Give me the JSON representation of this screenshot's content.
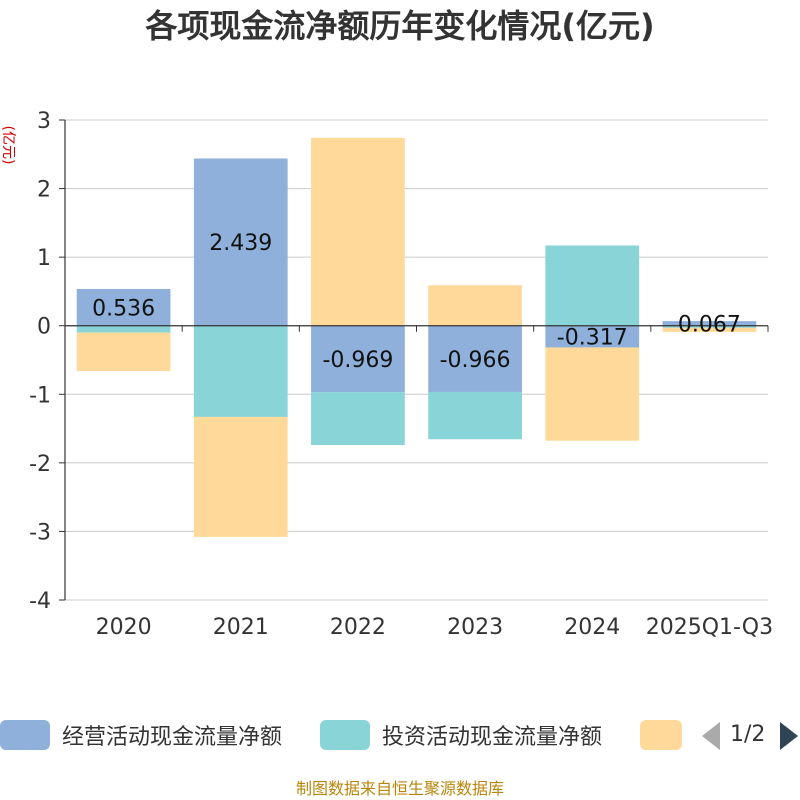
{
  "chart_data": {
    "type": "bar",
    "stacked": true,
    "title": "各项现金流净额历年变化情况(亿元)",
    "ylabel": "(亿元)",
    "xlabel": "",
    "ylim": [
      -4,
      3
    ],
    "yticks": [
      3,
      2,
      1,
      0,
      -1,
      -2,
      -3,
      -4
    ],
    "grid": true,
    "categories": [
      "2020",
      "2021",
      "2022",
      "2023",
      "2024",
      "2025Q1-Q3"
    ],
    "series": [
      {
        "name": "经营活动现金流量净额",
        "color": "#8eb0db",
        "values": [
          0.536,
          2.439,
          -0.969,
          -0.966,
          -0.317,
          0.067
        ],
        "labels_shown": true
      },
      {
        "name": "投资活动现金流量净额",
        "color": "#88d4d7",
        "values": [
          -0.1,
          -1.33,
          -0.77,
          -0.69,
          1.17,
          -0.03
        ],
        "labels_shown": false
      },
      {
        "name": "",
        "color": "#ffd999",
        "values": [
          -0.56,
          -1.75,
          2.74,
          0.59,
          -1.36,
          -0.06
        ],
        "labels_shown": false
      }
    ]
  },
  "legend": {
    "item1": "经营活动现金流量净额",
    "item2": "投资活动现金流量净额",
    "page": "1/2"
  },
  "source": "制图数据来自恒生聚源数据库"
}
